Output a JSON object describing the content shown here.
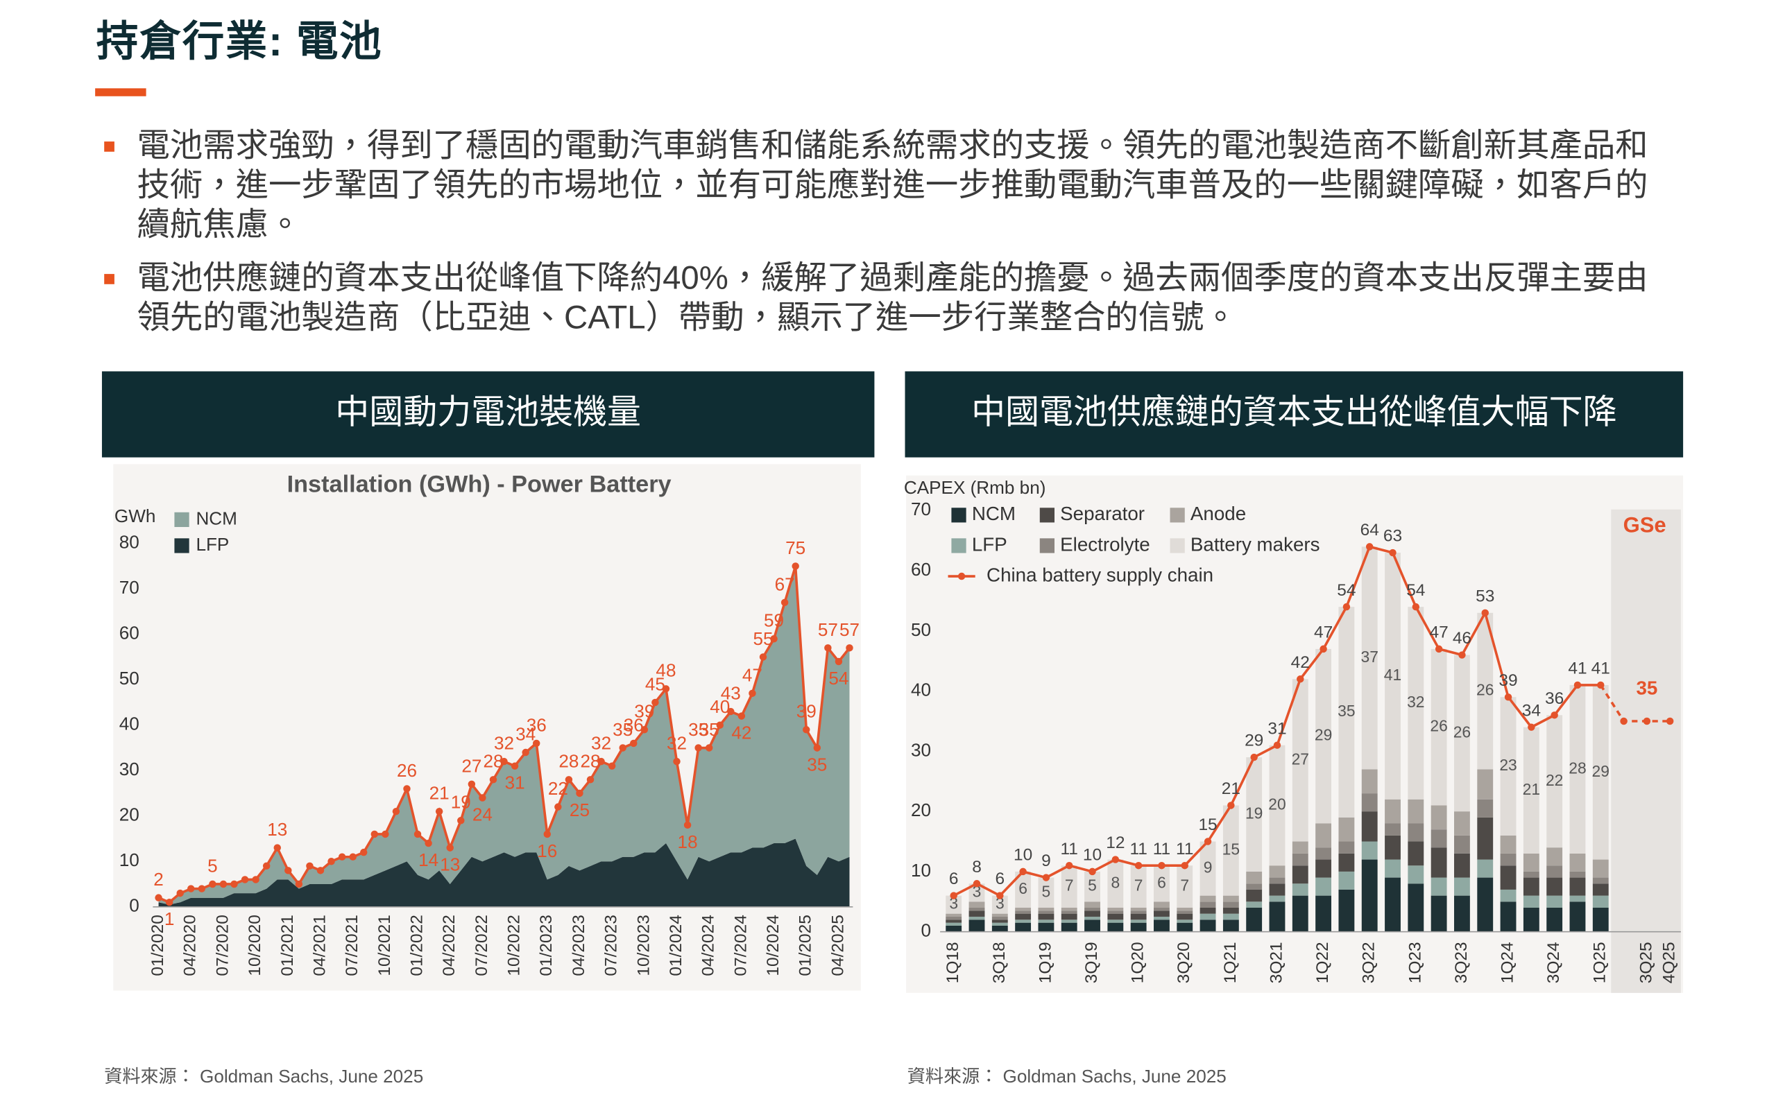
{
  "header": {
    "title": "持倉行業: 電池"
  },
  "bullets": [
    "電池需求強勁，得到了穩固的電動汽車銷售和儲能系統需求的支援。領先的電池製造商不斷創新其產品和技術，進一步鞏固了領先的市場地位，並有可能應對進一步推動電動汽車普及的一些關鍵障礙，如客戶的續航焦慮。",
    "電池供應鏈的資本支出從峰值下降約40%，緩解了過剩產能的擔憂。過去兩個季度的資本支出反彈主要由領先的電池製造商（比亞迪、CATL）帶動，顯示了進一步行業整合的信號。"
  ],
  "panels": [
    {
      "heading": "中國動力電池裝機量",
      "source": "資料來源：  Goldman Sachs, June 2025"
    },
    {
      "heading": "中國電池供應鏈的資本支出從峰值大幅下降",
      "source": "資料來源：  Goldman Sachs, June 2025"
    }
  ],
  "chart_data": [
    {
      "type": "stacked_area",
      "title": "Installation (GWh) - Power Battery",
      "y_label": "GWh",
      "categories": [
        "01/2020",
        null,
        null,
        "04/2020",
        null,
        null,
        "07/2020",
        null,
        null,
        "10/2020",
        null,
        null,
        "01/2021",
        null,
        null,
        "04/2021",
        null,
        null,
        "07/2021",
        null,
        null,
        "10/2021",
        null,
        null,
        "01/2022",
        null,
        null,
        "04/2022",
        null,
        null,
        "07/2022",
        null,
        null,
        "10/2022",
        null,
        null,
        "01/2023",
        null,
        null,
        "04/2023",
        null,
        null,
        "07/2023",
        null,
        null,
        "10/2023",
        null,
        null,
        "01/2024",
        null,
        null,
        "04/2024",
        null,
        null,
        "07/2024",
        null,
        null,
        "10/2024",
        null,
        null,
        "01/2025",
        null,
        null,
        "04/2025",
        null
      ],
      "series": [
        {
          "name": "NCM",
          "color": "#8ca59e",
          "values": [
            1,
            0.5,
            2,
            2,
            2,
            3,
            3,
            2,
            3,
            3,
            5,
            7,
            2,
            1,
            4,
            3,
            5,
            5,
            5,
            6,
            9,
            8,
            12,
            16,
            9,
            8,
            13,
            8,
            11,
            16,
            14,
            17,
            20,
            20,
            22,
            24,
            10,
            15,
            19,
            17,
            19,
            22,
            21,
            24,
            25,
            27,
            33,
            34,
            22,
            12,
            24,
            25,
            29,
            31,
            30,
            34,
            42,
            45,
            53,
            60,
            30,
            28,
            46,
            44,
            46
          ]
        },
        {
          "name": "LFP",
          "color": "#22363b",
          "values": [
            1,
            0.5,
            1,
            2,
            2,
            2,
            2,
            3,
            3,
            3,
            4,
            6,
            6,
            4,
            5,
            5,
            5,
            6,
            6,
            6,
            7,
            8,
            9,
            10,
            7,
            6,
            8,
            5,
            8,
            11,
            10,
            11,
            12,
            11,
            12,
            12,
            6,
            7,
            9,
            8,
            9,
            10,
            10,
            11,
            11,
            12,
            12,
            14,
            10,
            6,
            11,
            10,
            11,
            12,
            12,
            13,
            13,
            14,
            14,
            15,
            9,
            7,
            11,
            10,
            11
          ]
        }
      ],
      "total": {
        "color": "#e4532b",
        "values": [
          2,
          1,
          3,
          4,
          4,
          5,
          5,
          5,
          6,
          6,
          9,
          13,
          8,
          5,
          9,
          8,
          10,
          11,
          11,
          12,
          16,
          16,
          21,
          26,
          16,
          14,
          21,
          13,
          19,
          27,
          24,
          28,
          32,
          31,
          34,
          36,
          16,
          22,
          28,
          25,
          28,
          32,
          31,
          35,
          36,
          39,
          45,
          48,
          32,
          18,
          35,
          35,
          40,
          43,
          42,
          47,
          55,
          59,
          67,
          75,
          39,
          35,
          57,
          54,
          57
        ],
        "value_labels": [
          "2",
          "1",
          null,
          null,
          null,
          "5",
          null,
          null,
          null,
          null,
          null,
          "13",
          null,
          null,
          null,
          null,
          null,
          null,
          null,
          null,
          null,
          null,
          null,
          "26",
          null,
          "14",
          "21",
          "13",
          "19",
          "27",
          "24",
          "28",
          "32",
          "31",
          "34",
          "36",
          "16",
          "22",
          "28",
          "25",
          "28",
          "32",
          null,
          "35",
          "36",
          "39",
          "45",
          "48",
          "32",
          "18",
          "35",
          "35",
          "40",
          "43",
          "42",
          "47",
          "55",
          "59",
          "67",
          "75",
          "39",
          "35",
          "57",
          "54",
          "57"
        ]
      },
      "ylim": [
        0,
        80
      ],
      "yticks": [
        0,
        10,
        20,
        30,
        40,
        50,
        60,
        70,
        80
      ],
      "grid": false,
      "legend": "top-left"
    },
    {
      "type": "stacked_bar_line",
      "y_label": "CAPEX (Rmb bn)",
      "categories": [
        "1Q18",
        null,
        "3Q18",
        null,
        "1Q19",
        null,
        "3Q19",
        null,
        "1Q20",
        null,
        "3Q20",
        null,
        "1Q21",
        null,
        "3Q21",
        null,
        "1Q22",
        null,
        "3Q22",
        null,
        "1Q23",
        null,
        "3Q23",
        null,
        "1Q24",
        null,
        "3Q24",
        null,
        "1Q25",
        null,
        "3Q25",
        "4Q25"
      ],
      "series": [
        {
          "name": "NCM",
          "color": "#1f3236",
          "values": [
            1,
            2,
            1,
            1.5,
            1.5,
            1.5,
            2,
            1.5,
            1.5,
            2,
            1.5,
            2,
            2,
            4,
            5,
            6,
            6,
            7,
            12,
            9,
            8,
            6,
            6,
            9,
            5,
            4,
            4,
            5,
            4,
            null,
            null,
            null
          ]
        },
        {
          "name": "LFP",
          "color": "#8fa9a2",
          "values": [
            0.5,
            0.5,
            0.5,
            0.5,
            0.5,
            0.5,
            0.5,
            0.5,
            0.5,
            0.5,
            0.5,
            1,
            1,
            1,
            1,
            2,
            3,
            3,
            3,
            3,
            3,
            3,
            3,
            3,
            2,
            2,
            2,
            1,
            2,
            null,
            null,
            null
          ]
        },
        {
          "name": "Separator",
          "color": "#4e4a47",
          "values": [
            0.5,
            1,
            0.5,
            1,
            1,
            1,
            1,
            1,
            1,
            1,
            1,
            1,
            1,
            2,
            2,
            3,
            3,
            3,
            5,
            4,
            4,
            5,
            4,
            7,
            4,
            3,
            3,
            3,
            2,
            null,
            null,
            null
          ]
        },
        {
          "name": "Electrolyte",
          "color": "#8b8580",
          "values": [
            0.5,
            0.5,
            0.5,
            0.5,
            0.5,
            0.5,
            0.5,
            0.5,
            0.5,
            0.5,
            0.5,
            1,
            1,
            1,
            1,
            2,
            2,
            2,
            3,
            2,
            3,
            3,
            3,
            3,
            2,
            1,
            2,
            1,
            1,
            null,
            null,
            null
          ]
        },
        {
          "name": "Anode",
          "color": "#aaa49e",
          "values": [
            0.5,
            1,
            0.5,
            0.5,
            0.5,
            0.5,
            1,
            0.5,
            0.5,
            1,
            0.5,
            1,
            1,
            2,
            2,
            2,
            4,
            4,
            4,
            4,
            4,
            4,
            4,
            5,
            3,
            3,
            3,
            3,
            3,
            null,
            null,
            null
          ]
        },
        {
          "name": "Battery makers",
          "color": "#e0dcd8",
          "show_values": true,
          "values": [
            3,
            3,
            3,
            6,
            5,
            7,
            5,
            8,
            7,
            6,
            7,
            9,
            15,
            19,
            20,
            27,
            29,
            35,
            37,
            41,
            32,
            26,
            26,
            26,
            23,
            21,
            22,
            28,
            29,
            null,
            null,
            null
          ]
        }
      ],
      "line": {
        "name": "China battery supply chain",
        "color": "#e4532b",
        "values": [
          6,
          8,
          6,
          10,
          9,
          11,
          10,
          12,
          11,
          11,
          11,
          15,
          21,
          29,
          31,
          42,
          47,
          54,
          64,
          63,
          54,
          47,
          46,
          53,
          39,
          34,
          36,
          41,
          41,
          35,
          35,
          35
        ],
        "value_labels": [
          "6",
          "8",
          "6",
          "10",
          "9",
          "11",
          "10",
          "12",
          "11",
          "11",
          "11",
          "15",
          "21",
          "29",
          "31",
          "42",
          "47",
          "54",
          "64",
          "63",
          "54",
          "47",
          "46",
          "53",
          "39",
          "34",
          "36",
          "41",
          "41",
          null,
          "35",
          null
        ]
      },
      "forecast": {
        "label": "GSe",
        "start": 29
      },
      "ylim": [
        0,
        70
      ],
      "yticks": [
        0,
        10,
        20,
        30,
        40,
        50,
        60,
        70
      ],
      "grid": false,
      "legend": "top-left"
    }
  ]
}
